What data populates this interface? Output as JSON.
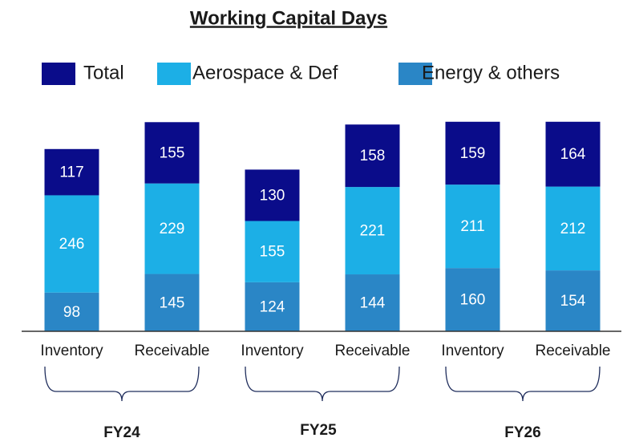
{
  "chart_data": {
    "type": "stacked-bar",
    "title": "Working Capital Days",
    "categories": [
      "Inventory",
      "Receivable",
      "Inventory",
      "Receivable",
      "Inventory",
      "Receivable"
    ],
    "groups": [
      "FY24",
      "FY25",
      "FY26"
    ],
    "series": [
      {
        "name": "Total",
        "color": "#0a0c8a",
        "values": [
          117,
          155,
          130,
          158,
          159,
          164
        ]
      },
      {
        "name": "Aerospace & Def",
        "color": "#1cafe6",
        "values": [
          246,
          229,
          155,
          221,
          211,
          212
        ]
      },
      {
        "name": "Energy & others",
        "color": "#2a86c6",
        "values": [
          98,
          145,
          124,
          144,
          160,
          154
        ]
      }
    ],
    "ylim": [
      0,
      560
    ],
    "legend": "top"
  }
}
